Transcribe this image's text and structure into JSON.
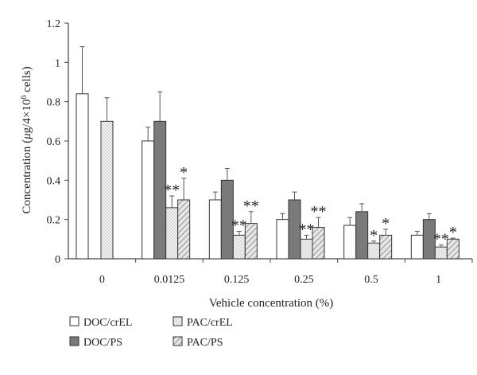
{
  "chart_data": {
    "type": "bar",
    "title": "",
    "xlabel": "Vehicle concentration (%)",
    "ylabel_parts": [
      "Concentration (",
      "μ",
      "g/4×10",
      "6",
      " cells)"
    ],
    "ylim": [
      0,
      1.2
    ],
    "yticks": [
      "0",
      "0.2",
      "0.4",
      "0.6",
      "0.8",
      "1",
      "1.2"
    ],
    "categories": [
      "0",
      "0.0125",
      "0.125",
      "0.25",
      "0.5",
      "1"
    ],
    "series": [
      {
        "name": "DOC/crEL",
        "pattern": "white",
        "values": [
          0.84,
          0.6,
          0.3,
          0.2,
          0.17,
          0.12
        ],
        "errors": [
          0.24,
          0.07,
          0.04,
          0.03,
          0.04,
          0.02
        ],
        "sig": [
          "",
          "",
          "",
          "",
          "",
          ""
        ]
      },
      {
        "name": "PAC/crEL",
        "pattern": "dots",
        "values": [
          0.7,
          0.26,
          0.12,
          0.1,
          0.08,
          0.06
        ],
        "errors": [
          0.12,
          0.06,
          0.02,
          0.02,
          0.01,
          0.01
        ],
        "sig": [
          "",
          "**",
          "**",
          "**",
          "*",
          "**"
        ]
      },
      {
        "name": "DOC/PS",
        "pattern": "gray",
        "values": [
          null,
          0.7,
          0.4,
          0.3,
          0.24,
          0.2
        ],
        "errors": [
          null,
          0.15,
          0.06,
          0.04,
          0.04,
          0.03
        ],
        "sig": [
          "",
          "",
          "",
          "",
          "",
          ""
        ]
      },
      {
        "name": "PAC/PS",
        "pattern": "hatch",
        "values": [
          null,
          0.3,
          0.18,
          0.16,
          0.12,
          0.1
        ],
        "errors": [
          null,
          0.11,
          0.06,
          0.05,
          0.03,
          0.005
        ],
        "sig": [
          "",
          "*",
          "**",
          "**",
          "*",
          "*"
        ]
      }
    ],
    "legend": {
      "placement": "bottom-left",
      "order": [
        "DOC/crEL",
        "DOC/PS",
        "PAC/crEL",
        "PAC/PS"
      ]
    },
    "colors": {
      "gray_fill": "#7a7a7a",
      "dot_fill": "#f2f2f2",
      "dot_color": "#9a9a9a",
      "hatch_fill": "#e6e6e6",
      "hatch_line": "#7d7d7d",
      "axis": "#444444",
      "error_bar": "#555555"
    }
  }
}
